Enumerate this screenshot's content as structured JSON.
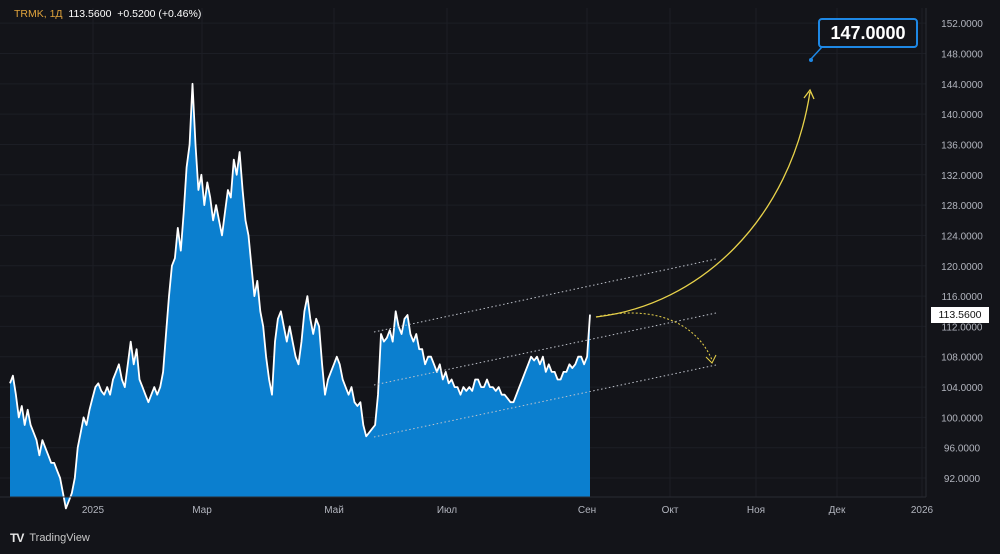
{
  "ticker": {
    "symbol": "TRMK",
    "interval": "1Д",
    "last": "113.5600",
    "change": "+0.5200",
    "change_pct": "(+0.46%)"
  },
  "brand": {
    "logo_text": "TV",
    "name": "TradingView"
  },
  "colors": {
    "area": "#0b7fcf",
    "line": "#ffffff",
    "annotation_arrow": "#e8d24a",
    "box_border": "#1e88e5",
    "channel": "#bfc3cc"
  },
  "chart_data": {
    "type": "area",
    "y_axis_labels": [
      "152.0000",
      "148.0000",
      "144.0000",
      "140.0000",
      "136.0000",
      "132.0000",
      "128.0000",
      "124.0000",
      "120.0000",
      "116.0000",
      "112.0000",
      "108.0000",
      "104.0000",
      "100.0000",
      "96.0000",
      "92.0000"
    ],
    "ylim": [
      89.5,
      154
    ],
    "x_axis_labels": [
      "2025",
      "Мар",
      "Май",
      "Июл",
      "Сен",
      "Окт",
      "Ноя",
      "Дек",
      "2026"
    ],
    "series": [
      {
        "values": [
          104.5,
          105.5,
          103,
          100,
          101.5,
          99,
          101,
          99,
          98,
          97,
          95,
          97,
          96,
          95,
          94,
          94,
          93,
          92,
          90,
          88,
          89,
          90,
          92,
          96,
          98,
          100,
          99,
          101,
          102.5,
          104,
          104.5,
          103.5,
          103,
          104,
          103,
          105,
          106,
          107,
          105,
          104,
          107,
          110,
          107,
          109,
          105,
          104,
          103,
          102,
          103,
          104,
          103,
          104,
          106,
          111,
          116,
          120,
          121,
          125,
          122,
          127,
          133,
          136,
          144,
          136,
          130,
          132,
          128,
          131,
          129,
          126,
          128,
          126,
          124,
          127,
          130,
          129,
          134,
          132,
          135,
          130,
          126,
          124,
          120,
          116,
          118,
          114,
          112,
          108,
          105,
          103,
          110,
          113,
          114,
          112,
          110,
          112,
          110,
          108,
          107,
          110,
          114,
          116,
          113,
          111,
          113,
          112,
          107,
          103,
          105,
          106,
          107,
          108,
          107,
          105,
          104,
          103,
          104,
          102,
          101.5,
          102,
          99,
          97.5,
          98,
          98.5,
          99,
          103,
          111,
          110,
          110.5,
          111.5,
          110,
          114,
          112,
          111,
          113,
          113.5,
          111,
          110,
          111,
          109,
          109,
          107,
          108,
          108,
          107,
          106,
          107,
          105,
          106,
          104.5,
          105,
          104,
          104,
          103,
          104,
          103.5,
          104,
          103.5,
          105,
          105,
          104,
          104,
          105,
          104,
          104,
          103.5,
          104,
          103,
          103,
          102.5,
          102,
          102,
          103,
          104,
          105,
          106,
          107,
          108,
          107.5,
          108,
          107,
          108,
          106,
          107,
          106,
          106,
          105,
          105,
          106,
          106,
          107,
          106.5,
          107,
          108,
          108,
          107,
          108,
          113.56
        ]
      }
    ],
    "last_price_label": "113.5600",
    "target_label": "147.0000"
  }
}
